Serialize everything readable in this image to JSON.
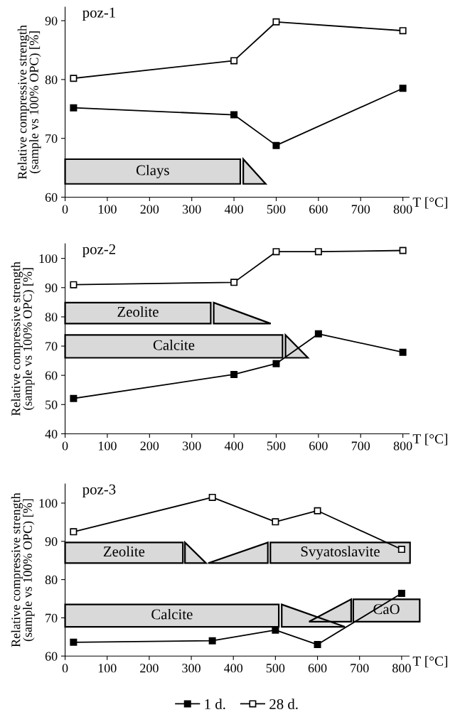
{
  "chart_data": [
    {
      "type": "line",
      "title": "poz-1",
      "xlabel": "T [°C]",
      "ylabel": "Relative compressive strength\n(sample vs 100% OPC) [%]",
      "marker": "square",
      "grid": false,
      "legend": false,
      "xlim": [
        0,
        815
      ],
      "xticks": [
        0,
        100,
        200,
        300,
        400,
        500,
        600,
        700,
        800
      ],
      "ylim": [
        60,
        92.3
      ],
      "yticks": [
        60,
        70,
        80,
        90
      ],
      "series": [
        {
          "color": "#000000",
          "x": [
            20,
            400,
            500,
            800
          ],
          "values": [
            75.2,
            74.0,
            68.8,
            78.5
          ]
        },
        {
          "color": "#000000",
          "x": [
            20,
            400,
            500,
            800
          ],
          "values": [
            80.2,
            83.2,
            89.8,
            88.3
          ]
        }
      ],
      "bands": [
        {
          "axis": "x",
          "from": 0,
          "to": 415,
          "label": "Clays",
          "color": "#d9d9d9"
        },
        {
          "axis": "x",
          "from": 422,
          "to": 475,
          "color": "#d9d9d9"
        }
      ]
    },
    {
      "type": "line",
      "title": "poz-2",
      "xlabel": "T [°C]",
      "ylabel": "Relative compressive strength\n(sample vs 100% OPC) [%]",
      "marker": "square",
      "grid": false,
      "legend": false,
      "xlim": [
        0,
        815
      ],
      "xticks": [
        0,
        100,
        200,
        300,
        400,
        500,
        600,
        700,
        800
      ],
      "ylim": [
        40,
        105
      ],
      "yticks": [
        40,
        50,
        60,
        70,
        80,
        90,
        100
      ],
      "series": [
        {
          "color": "#000000",
          "x": [
            20,
            400,
            500,
            600,
            800
          ],
          "values": [
            52.1,
            60.3,
            64.0,
            74.2,
            67.9
          ]
        },
        {
          "color": "#000000",
          "x": [
            20,
            400,
            500,
            600,
            800
          ],
          "values": [
            91.0,
            91.8,
            102.3,
            102.3,
            102.7
          ]
        }
      ],
      "bands": [
        {
          "axis": "x",
          "from": 0,
          "to": 345,
          "label": "Zeolite",
          "color": "#d9d9d9"
        },
        {
          "axis": "x",
          "from": 352,
          "to": 487,
          "color": "#d9d9d9"
        },
        {
          "axis": "x",
          "from": 0,
          "to": 515,
          "label": "Calcite",
          "color": "#d9d9d9"
        },
        {
          "axis": "x",
          "from": 522,
          "to": 575,
          "color": "#d9d9d9"
        }
      ]
    },
    {
      "type": "line",
      "title": "poz-3",
      "xlabel": "T [°C]",
      "ylabel": "Relative compressive strength\n(sample vs 100% OPC) [%]",
      "marker": "square",
      "grid": false,
      "legend": "bottom",
      "xlim": [
        0,
        818
      ],
      "xticks": [
        0,
        100,
        200,
        300,
        400,
        500,
        600,
        700,
        800
      ],
      "ylim": [
        60,
        105
      ],
      "yticks": [
        60,
        70,
        80,
        90,
        100
      ],
      "series": [
        {
          "name": "1 d.",
          "color": "#000000",
          "x": [
            20,
            350,
            500,
            600,
            800
          ],
          "values": [
            63.6,
            64.0,
            66.8,
            63.0,
            76.4
          ]
        },
        {
          "name": "28 d.",
          "color": "#000000",
          "x": [
            20,
            350,
            500,
            600,
            800
          ],
          "values": [
            92.5,
            101.5,
            95.1,
            98.0,
            87.9
          ]
        }
      ],
      "bands": [
        {
          "axis": "x",
          "from": 0,
          "to": 280,
          "label": "Zeolite",
          "color": "#d9d9d9"
        },
        {
          "axis": "x",
          "from": 285,
          "to": 335,
          "color": "#d9d9d9"
        },
        {
          "axis": "x",
          "from": 340,
          "to": 482,
          "color": "#d9d9d9"
        },
        {
          "axis": "x",
          "from": 488,
          "to": 820,
          "label": "Svyatoslavite",
          "color": "#d9d9d9"
        },
        {
          "axis": "x",
          "from": 0,
          "to": 508,
          "label": "Calcite",
          "color": "#d9d9d9"
        },
        {
          "axis": "x",
          "from": 515,
          "to": 665,
          "color": "#d9d9d9"
        },
        {
          "axis": "x",
          "from": 580,
          "to": 680,
          "color": "#d9d9d9"
        },
        {
          "axis": "x",
          "from": 685,
          "to": 843,
          "label": "CaO",
          "color": "#d9d9d9"
        }
      ]
    }
  ]
}
